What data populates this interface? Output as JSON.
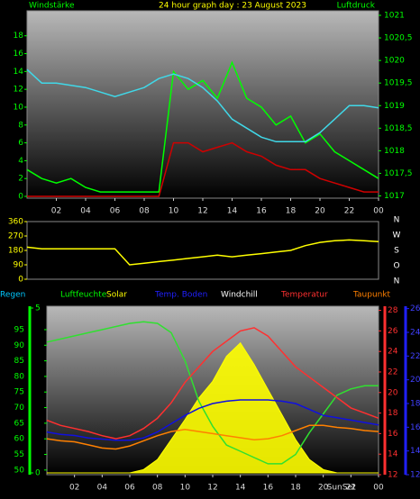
{
  "chart_data": [
    {
      "type": "line",
      "title": "24 hour graph day : 23 August 2023",
      "y_label": "Windstärke",
      "y2_label": "Luftdruck",
      "x": [
        0,
        1,
        2,
        3,
        4,
        5,
        6,
        7,
        8,
        9,
        10,
        11,
        12,
        13,
        14,
        15,
        16,
        17,
        18,
        19,
        20,
        21,
        22,
        23,
        24
      ],
      "xlim": [
        0,
        24
      ],
      "xticks": [
        {
          "value": 2,
          "label": "02"
        },
        {
          "value": 4,
          "label": "04"
        },
        {
          "value": 6,
          "label": "06"
        },
        {
          "value": 8,
          "label": "08"
        },
        10,
        12,
        14,
        16,
        18,
        20,
        22,
        {
          "value": 24,
          "label": "00"
        }
      ],
      "ylim": [
        -0.2,
        20.8
      ],
      "yticks": [
        0,
        2,
        4,
        6,
        8,
        10,
        12,
        14,
        16,
        18
      ],
      "y2lim": [
        1016.95,
        1021.1
      ],
      "y2ticks": [
        1017,
        {
          "value": 1017.5,
          "label": "1017,5"
        },
        1018,
        {
          "value": 1018.5,
          "label": "1018,5"
        },
        1019,
        {
          "value": 1019.5,
          "label": "1019,5"
        },
        1020,
        {
          "value": 1020.5,
          "label": "1020,5"
        },
        1021
      ],
      "series": [
        {
          "color": "#00ff00",
          "values": [
            3,
            2,
            1.5,
            2,
            1,
            0.5,
            0.5,
            0.5,
            0.5,
            0.5,
            14,
            12,
            13,
            11,
            15,
            11,
            10,
            8,
            9,
            6,
            7,
            5,
            4,
            3,
            2
          ]
        },
        {
          "color": "#d00000",
          "values": [
            0,
            0,
            0,
            0,
            0,
            0,
            0,
            0,
            0,
            0,
            6,
            6,
            5,
            5.5,
            6,
            5,
            4.5,
            3.5,
            3,
            3,
            2,
            1.5,
            1,
            0.5,
            0.5
          ]
        },
        {
          "color": "#40d8e8",
          "axis": "y2",
          "values": [
            1019.8,
            1019.5,
            1019.5,
            1019.45,
            1019.4,
            1019.3,
            1019.2,
            1019.3,
            1019.4,
            1019.6,
            1019.7,
            1019.6,
            1019.4,
            1019.1,
            1018.7,
            1018.5,
            1018.3,
            1018.2,
            1018.2,
            1018.2,
            1018.4,
            1018.7,
            1019,
            1019,
            1018.95
          ]
        }
      ]
    },
    {
      "type": "line",
      "x": [
        0,
        1,
        2,
        3,
        4,
        5,
        6,
        7,
        8,
        9,
        10,
        11,
        12,
        13,
        14,
        15,
        16,
        17,
        18,
        19,
        20,
        21,
        22,
        23,
        24
      ],
      "xlim": [
        0,
        24
      ],
      "ylim": [
        0,
        360
      ],
      "yticks": [
        0,
        90,
        180,
        270,
        360
      ],
      "compass": [
        "N",
        "W",
        "S",
        "O",
        "N"
      ],
      "series": [
        {
          "color": "#ffff00",
          "values": [
            200,
            190,
            190,
            190,
            190,
            190,
            190,
            90,
            100,
            110,
            120,
            130,
            140,
            150,
            140,
            150,
            160,
            170,
            180,
            210,
            230,
            240,
            245,
            240,
            235
          ]
        }
      ]
    },
    {
      "type": "line",
      "headers": [
        {
          "text": "Regen",
          "color": "#00c8ff"
        },
        {
          "text": "Luftfeuchte",
          "color": "#00ff00"
        },
        {
          "text": "Solar",
          "color": "#ffff00"
        },
        {
          "text": "Temp. Boden",
          "color": "#2020ff"
        },
        {
          "text": "Windchill",
          "color": "#ffffff"
        },
        {
          "text": "Temperatur",
          "color": "#ff3030"
        },
        {
          "text": "Taupunkt",
          "color": "#ff8000"
        }
      ],
      "x": [
        0,
        1,
        2,
        3,
        4,
        5,
        6,
        7,
        8,
        9,
        10,
        11,
        12,
        13,
        14,
        15,
        16,
        17,
        18,
        19,
        20,
        21,
        22,
        23,
        24
      ],
      "xlim": [
        0,
        24
      ],
      "xticks": [
        {
          "value": 2,
          "label": "02"
        },
        {
          "value": 4,
          "label": "04"
        },
        {
          "value": 6,
          "label": "06"
        },
        {
          "value": 8,
          "label": "08"
        },
        10,
        12,
        14,
        16,
        18,
        20,
        22,
        {
          "value": 24,
          "label": "00"
        }
      ],
      "annotation": {
        "text": "SunSet",
        "x": 21.3
      },
      "rain_lim": [
        0,
        5
      ],
      "rain_ticks": [
        0,
        5
      ],
      "ylim": [
        48.5,
        102.5
      ],
      "yticks": [
        50,
        55,
        60,
        65,
        70,
        75,
        80,
        85,
        90,
        95
      ],
      "y2lim": [
        12,
        28.4
      ],
      "y2ticks": [
        12,
        14,
        16,
        18,
        20,
        22,
        24,
        26,
        28
      ],
      "y3lim": [
        12,
        26.2
      ],
      "y3ticks": [
        12,
        14,
        16,
        18,
        20,
        22,
        24,
        26
      ],
      "solar_lim": [
        0,
        1000
      ],
      "series": [
        {
          "color": "#ffff00",
          "axis": "solar",
          "values": [
            0,
            0,
            0,
            0,
            0,
            0,
            0,
            20,
            80,
            200,
            320,
            450,
            550,
            700,
            780,
            650,
            500,
            350,
            200,
            80,
            20,
            0,
            0,
            0,
            0
          ]
        },
        {
          "color": "#30e030",
          "values": [
            91,
            92,
            93,
            94,
            95,
            96,
            97,
            97.5,
            97,
            94,
            85,
            72,
            64,
            58,
            56,
            54,
            52,
            52,
            55,
            62,
            68,
            74,
            76,
            77,
            77
          ]
        },
        {
          "color": "#ff3030",
          "axis": "y2",
          "values": [
            17.3,
            16.8,
            16.5,
            16.2,
            15.8,
            15.5,
            15.8,
            16.5,
            17.5,
            19,
            21,
            22.5,
            24,
            25,
            26,
            26.3,
            25.5,
            24,
            22.5,
            21.5,
            20.5,
            19.5,
            18.5,
            18,
            17.5
          ]
        },
        {
          "color": "#ff8000",
          "axis": "y2",
          "values": [
            15.5,
            15.3,
            15.2,
            14.9,
            14.6,
            14.5,
            14.8,
            15.3,
            15.8,
            16.2,
            16.4,
            16.2,
            16,
            15.8,
            15.6,
            15.4,
            15.5,
            15.8,
            16.3,
            16.8,
            16.8,
            16.6,
            16.5,
            16.3,
            16.2
          ]
        },
        {
          "color": "#1010e0",
          "axis": "y3",
          "values": [
            15.6,
            15.4,
            15.3,
            15.1,
            15,
            14.9,
            14.9,
            15.1,
            15.6,
            16.3,
            17,
            17.6,
            18,
            18.2,
            18.3,
            18.3,
            18.3,
            18.2,
            18,
            17.5,
            17,
            16.8,
            16.6,
            16.4,
            16.2
          ]
        }
      ]
    }
  ]
}
